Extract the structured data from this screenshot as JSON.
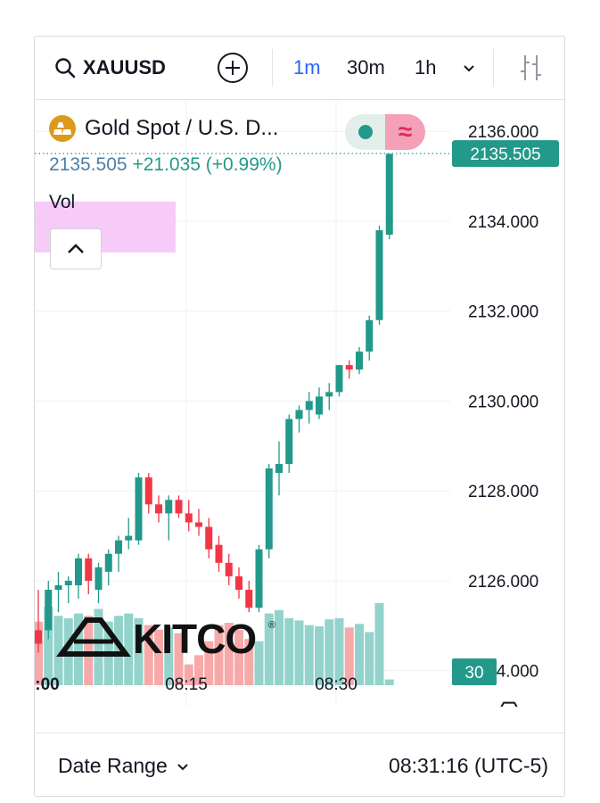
{
  "toolbar": {
    "symbol": "XAUUSD",
    "intervals": [
      "1m",
      "30m",
      "1h"
    ],
    "active_interval": "1m",
    "search_icon": "search-icon",
    "add_icon": "plus-circle-icon",
    "dropdown_icon": "chevron-down-icon",
    "indicators_icon": "indicators-icon"
  },
  "legend": {
    "title": "Gold Spot / U.S. D...",
    "last": "2135.505",
    "change": "+21.035",
    "change_pct": "(+0.99%)",
    "vol_label": "Vol",
    "collapse_icon": "chevron-up-icon",
    "symbol_icon": "gold-bars-icon"
  },
  "watermark": {
    "text": "KITCO",
    "registered": "®"
  },
  "colors": {
    "up": "#22998a",
    "down": "#f23645",
    "vol_up": "#93d3cb",
    "vol_down": "#f7a9a9",
    "accent": "#2962ff",
    "highlight": "#f3b7f5"
  },
  "bottom": {
    "date_range": "Date Range",
    "clock": "08:31:16 (UTC-5)",
    "settings_icon": "hexagon-settings-icon"
  },
  "chart_data": {
    "type": "candlestick",
    "xlabel": "",
    "ylabel": "",
    "x_ticks": [
      ":00",
      "08:15",
      "08:30"
    ],
    "y_ticks": [
      "2136.000",
      "2134.000",
      "2132.000",
      "2130.000",
      "2128.000",
      "2126.000",
      "2124.000"
    ],
    "ylim": [
      2123.2,
      2136.6
    ],
    "last_price": "2135.505",
    "volume_label": "30",
    "grid": true,
    "series": [
      {
        "o": 2124.9,
        "h": 2125.8,
        "l": 2124.4,
        "c": 2124.6,
        "v": 0.55
      },
      {
        "o": 2124.9,
        "h": 2126.0,
        "l": 2124.7,
        "c": 2125.8,
        "v": 0.68
      },
      {
        "o": 2125.8,
        "h": 2126.2,
        "l": 2125.3,
        "c": 2125.9,
        "v": 0.6
      },
      {
        "o": 2125.9,
        "h": 2126.1,
        "l": 2125.5,
        "c": 2126.0,
        "v": 0.58
      },
      {
        "o": 2125.9,
        "h": 2126.6,
        "l": 2125.6,
        "c": 2126.5,
        "v": 0.62
      },
      {
        "o": 2126.5,
        "h": 2126.6,
        "l": 2125.7,
        "c": 2126.0,
        "v": 0.6
      },
      {
        "o": 2125.8,
        "h": 2126.4,
        "l": 2125.5,
        "c": 2126.3,
        "v": 0.66
      },
      {
        "o": 2126.2,
        "h": 2126.7,
        "l": 2125.9,
        "c": 2126.6,
        "v": 0.55
      },
      {
        "o": 2126.6,
        "h": 2127.0,
        "l": 2126.2,
        "c": 2126.9,
        "v": 0.6
      },
      {
        "o": 2126.9,
        "h": 2127.4,
        "l": 2126.7,
        "c": 2127.0,
        "v": 0.62
      },
      {
        "o": 2126.9,
        "h": 2128.4,
        "l": 2126.8,
        "c": 2128.3,
        "v": 0.58
      },
      {
        "o": 2128.3,
        "h": 2128.4,
        "l": 2127.5,
        "c": 2127.7,
        "v": 0.52
      },
      {
        "o": 2127.7,
        "h": 2127.9,
        "l": 2127.3,
        "c": 2127.5,
        "v": 0.48
      },
      {
        "o": 2127.5,
        "h": 2127.9,
        "l": 2126.9,
        "c": 2127.8,
        "v": 0.5
      },
      {
        "o": 2127.8,
        "h": 2127.9,
        "l": 2127.4,
        "c": 2127.5,
        "v": 0.45
      },
      {
        "o": 2127.5,
        "h": 2127.8,
        "l": 2127.1,
        "c": 2127.3,
        "v": 0.18
      },
      {
        "o": 2127.3,
        "h": 2127.6,
        "l": 2127.0,
        "c": 2127.2,
        "v": 0.26
      },
      {
        "o": 2127.2,
        "h": 2127.4,
        "l": 2126.5,
        "c": 2126.7,
        "v": 0.38
      },
      {
        "o": 2126.8,
        "h": 2127.0,
        "l": 2126.2,
        "c": 2126.4,
        "v": 0.52
      },
      {
        "o": 2126.4,
        "h": 2126.6,
        "l": 2125.9,
        "c": 2126.1,
        "v": 0.54
      },
      {
        "o": 2126.1,
        "h": 2126.3,
        "l": 2125.6,
        "c": 2125.8,
        "v": 0.48
      },
      {
        "o": 2125.8,
        "h": 2126.0,
        "l": 2125.3,
        "c": 2125.4,
        "v": 0.4
      },
      {
        "o": 2125.4,
        "h": 2126.8,
        "l": 2125.3,
        "c": 2126.7,
        "v": 0.38
      },
      {
        "o": 2126.7,
        "h": 2128.6,
        "l": 2126.5,
        "c": 2128.5,
        "v": 0.62
      },
      {
        "o": 2128.4,
        "h": 2129.1,
        "l": 2127.9,
        "c": 2128.6,
        "v": 0.65
      },
      {
        "o": 2128.6,
        "h": 2129.7,
        "l": 2128.4,
        "c": 2129.6,
        "v": 0.58
      },
      {
        "o": 2129.6,
        "h": 2129.9,
        "l": 2129.3,
        "c": 2129.8,
        "v": 0.56
      },
      {
        "o": 2129.8,
        "h": 2130.2,
        "l": 2129.5,
        "c": 2130.0,
        "v": 0.52
      },
      {
        "o": 2129.7,
        "h": 2130.3,
        "l": 2129.6,
        "c": 2130.1,
        "v": 0.51
      },
      {
        "o": 2130.1,
        "h": 2130.4,
        "l": 2129.8,
        "c": 2130.2,
        "v": 0.57
      },
      {
        "o": 2130.2,
        "h": 2130.8,
        "l": 2130.1,
        "c": 2130.8,
        "v": 0.58
      },
      {
        "o": 2130.8,
        "h": 2130.9,
        "l": 2130.5,
        "c": 2130.7,
        "v": 0.5
      },
      {
        "o": 2130.7,
        "h": 2131.2,
        "l": 2130.6,
        "c": 2131.1,
        "v": 0.53
      },
      {
        "o": 2131.1,
        "h": 2131.9,
        "l": 2130.9,
        "c": 2131.8,
        "v": 0.46
      },
      {
        "o": 2131.8,
        "h": 2133.9,
        "l": 2131.7,
        "c": 2133.8,
        "v": 0.71
      },
      {
        "o": 2133.7,
        "h": 2135.5,
        "l": 2133.6,
        "c": 2135.5,
        "v": 0.05
      }
    ]
  }
}
